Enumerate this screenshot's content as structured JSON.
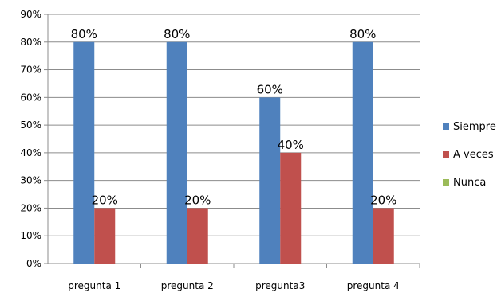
{
  "chart_data": {
    "type": "bar",
    "categories": [
      "pregunta 1",
      "pregunta 2",
      "pregunta3",
      "pregunta 4"
    ],
    "series": [
      {
        "name": "Siempre",
        "values": [
          80,
          80,
          60,
          80
        ],
        "color": "#4F81BD",
        "labels": [
          "80%",
          "80%",
          "60%",
          "80%"
        ]
      },
      {
        "name": "A veces",
        "values": [
          20,
          20,
          40,
          20
        ],
        "color": "#C0504D",
        "labels": [
          "20%",
          "20%",
          "40%",
          "20%"
        ]
      },
      {
        "name": "Nunca",
        "values": [
          0,
          0,
          0,
          0
        ],
        "color": "#9BBB59",
        "labels": [
          "",
          "",
          "",
          ""
        ]
      }
    ],
    "yticks": [
      "0%",
      "10%",
      "20%",
      "30%",
      "40%",
      "50%",
      "60%",
      "70%",
      "80%",
      "90%"
    ],
    "ylim": [
      0,
      90
    ],
    "grid": true,
    "legend_position": "right",
    "title": "",
    "xlabel": "",
    "ylabel": ""
  }
}
